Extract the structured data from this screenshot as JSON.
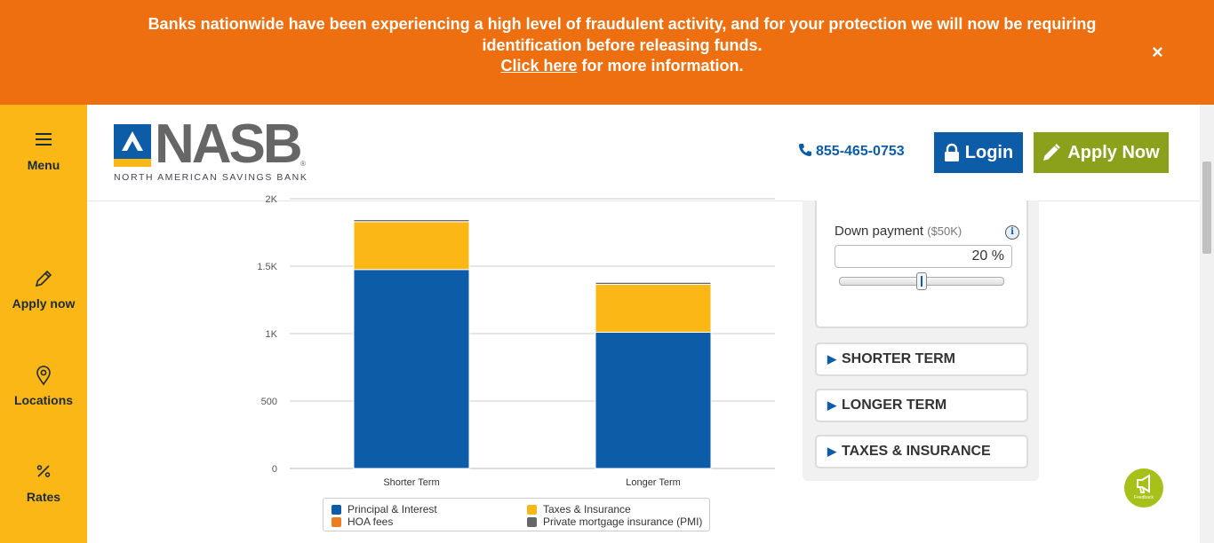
{
  "banner": {
    "message": "Banks nationwide have been experiencing a high level of fraudulent activity, and for your protection we will now be requiring identification before releasing funds.",
    "link_text": "Click here",
    "link_suffix": " for more information.",
    "close_symbol": "×"
  },
  "sidebar": {
    "items": [
      {
        "label": "Menu",
        "icon": "hamburger-icon"
      },
      {
        "label": "Apply now",
        "icon": "pencil-icon"
      },
      {
        "label": "Locations",
        "icon": "map-pin-icon"
      },
      {
        "label": "Rates",
        "icon": "percent-icon"
      }
    ]
  },
  "header": {
    "logo_text": "NASB",
    "logo_reg": "®",
    "logo_subtitle": "NORTH AMERICAN SAVINGS BANK",
    "phone": "855-465-0753",
    "login_label": "Login",
    "apply_label": "Apply Now"
  },
  "chart_data": {
    "type": "bar",
    "stacked": true,
    "categories": [
      "Shorter Term",
      "Longer Term"
    ],
    "series": [
      {
        "name": "Principal & Interest",
        "color": "#0d5ca8",
        "values": [
          1475,
          1010
        ]
      },
      {
        "name": "HOA fees",
        "color": "#ee7d1f",
        "values": [
          0,
          0
        ]
      },
      {
        "name": "Taxes & Insurance",
        "color": "#fbb715",
        "values": [
          355,
          355
        ]
      },
      {
        "name": "Private mortgage insurance (PMI)",
        "color": "#666666",
        "values": [
          15,
          15
        ]
      }
    ],
    "y_ticks": [
      "0",
      "500",
      "1K",
      "1.5K",
      "2K"
    ],
    "y_tick_values": [
      0,
      500,
      1000,
      1500,
      2000
    ],
    "ylim": [
      0,
      2000
    ],
    "grid": true,
    "legend_placement": "bottom"
  },
  "calculator": {
    "down_payment_label": "Down payment",
    "down_payment_hint": "($50K)",
    "info_symbol": "i",
    "down_payment_value": "20 %",
    "down_payment_percent": 20,
    "sections": [
      "SHORTER TERM",
      "LONGER TERM",
      "TAXES & INSURANCE"
    ]
  },
  "feedback": {
    "label": "Feedback"
  }
}
